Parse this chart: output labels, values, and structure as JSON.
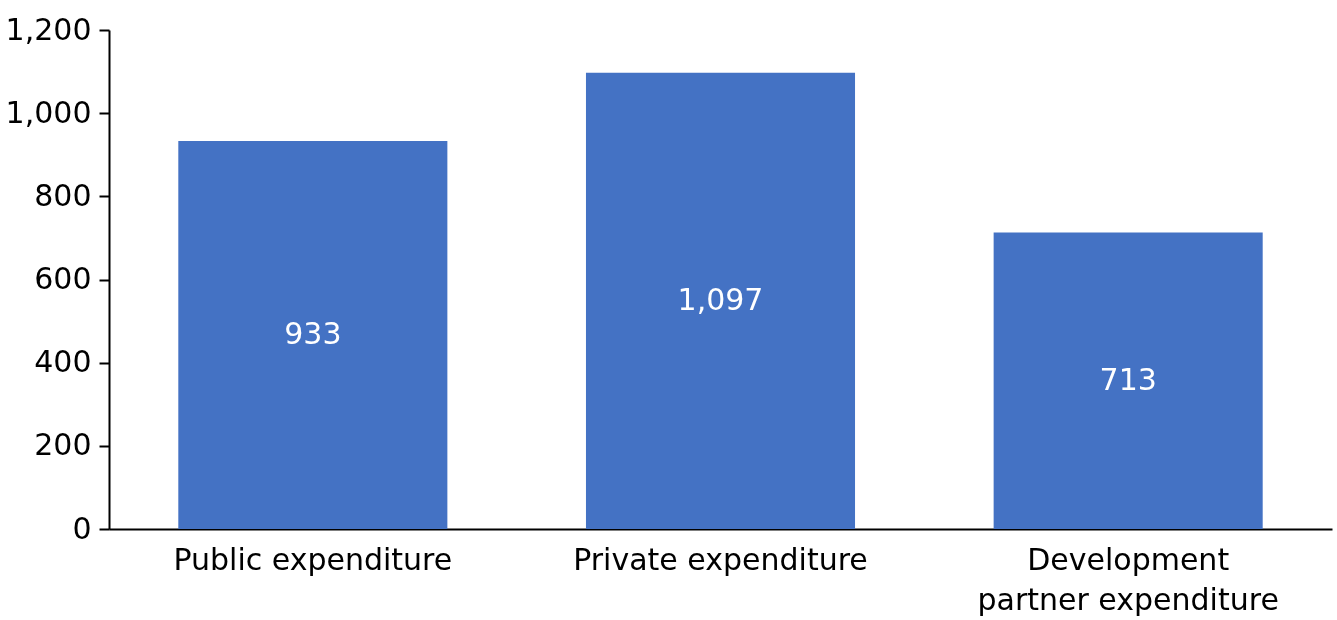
{
  "chart_data": {
    "type": "bar",
    "categories": [
      "Public expenditure",
      "Private expenditure",
      "Development partner expenditure"
    ],
    "values": [
      933,
      1097,
      713
    ],
    "color": "#4472c4",
    "value_labels": [
      "933",
      "1,097",
      "713"
    ],
    "ylim": [
      0,
      1200
    ],
    "yticks": [
      0,
      {
        "value": 200,
        "label": "200"
      },
      {
        "value": 400,
        "label": "400"
      },
      {
        "value": 600,
        "label": "600"
      },
      {
        "value": 800,
        "label": "800"
      },
      {
        "value": 1000,
        "label": "1,000"
      },
      {
        "value": 1200,
        "label": "1,200"
      }
    ],
    "grid": false
  }
}
